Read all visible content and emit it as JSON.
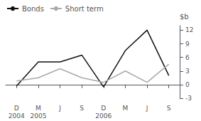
{
  "chart_data": {
    "type": "line",
    "categories": [
      "D\n2004",
      "M\n2005",
      "J",
      "S",
      "D\n2006",
      "M",
      "J",
      "S"
    ],
    "series": [
      {
        "name": "Bonds",
        "color": "#111111",
        "values": [
          -0.3,
          5.0,
          5.0,
          6.5,
          -0.5,
          7.5,
          12.0,
          2.0
        ]
      },
      {
        "name": "Short term",
        "color": "#aaaaaa",
        "values": [
          0.8,
          1.5,
          3.5,
          1.5,
          0.5,
          3.0,
          0.5,
          4.5
        ]
      }
    ],
    "ylabel": "$b",
    "ylim": [
      -3,
      13
    ],
    "yticks": [
      -3,
      0,
      3,
      6,
      9,
      12
    ],
    "grid": false,
    "legend": "upper left"
  }
}
